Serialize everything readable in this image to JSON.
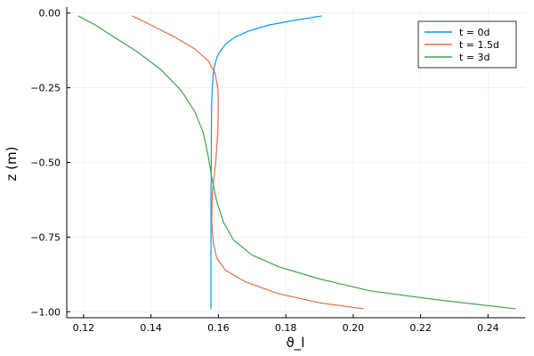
{
  "chart_data": {
    "type": "line",
    "xlabel": "ϑ_l",
    "ylabel": "z (m)",
    "xlim": [
      0.115,
      0.251
    ],
    "ylim": [
      -1.02,
      0.02
    ],
    "xticks": [
      0.12,
      0.14,
      0.16,
      0.18,
      0.2,
      0.22,
      0.24
    ],
    "xtick_labels": [
      "0.12",
      "0.14",
      "0.16",
      "0.18",
      "0.20",
      "0.22",
      "0.24"
    ],
    "yticks": [
      0.0,
      -0.25,
      -0.5,
      -0.75,
      -1.0
    ],
    "ytick_labels": [
      "0.00",
      "−0.25",
      "−0.50",
      "−0.75",
      "−1.00"
    ],
    "grid": true,
    "legend_position": "top-right",
    "series": [
      {
        "name": "t = 0d",
        "color": "#009AFA",
        "x": [
          0.1578,
          0.1578,
          0.1578,
          0.1578,
          0.1578,
          0.1579,
          0.1579,
          0.158,
          0.1582,
          0.1585,
          0.159,
          0.1598,
          0.161,
          0.1625,
          0.165,
          0.169,
          0.175,
          0.182,
          0.1905
        ],
        "y": [
          -0.99,
          -0.9,
          -0.8,
          -0.7,
          -0.6,
          -0.5,
          -0.4,
          -0.3,
          -0.25,
          -0.2,
          -0.17,
          -0.14,
          -0.12,
          -0.1,
          -0.08,
          -0.06,
          -0.04,
          -0.025,
          -0.01
        ]
      },
      {
        "name": "t = 1.5d",
        "color": "#E36F47",
        "x": [
          0.203,
          0.19,
          0.178,
          0.168,
          0.162,
          0.1595,
          0.1585,
          0.158,
          0.1582,
          0.1592,
          0.1598,
          0.16,
          0.1598,
          0.159,
          0.157,
          0.153,
          0.147,
          0.14,
          0.1345
        ],
        "y": [
          -0.99,
          -0.97,
          -0.94,
          -0.9,
          -0.86,
          -0.82,
          -0.77,
          -0.7,
          -0.6,
          -0.5,
          -0.4,
          -0.3,
          -0.25,
          -0.2,
          -0.16,
          -0.12,
          -0.08,
          -0.04,
          -0.01
        ]
      },
      {
        "name": "t = 3d",
        "color": "#3EA44E",
        "x": [
          0.248,
          0.225,
          0.205,
          0.19,
          0.178,
          0.17,
          0.1645,
          0.1615,
          0.1595,
          0.158,
          0.157,
          0.1555,
          0.153,
          0.149,
          0.143,
          0.136,
          0.129,
          0.1235,
          0.1185
        ],
        "y": [
          -0.99,
          -0.96,
          -0.93,
          -0.89,
          -0.85,
          -0.81,
          -0.76,
          -0.7,
          -0.63,
          -0.55,
          -0.48,
          -0.4,
          -0.33,
          -0.26,
          -0.19,
          -0.13,
          -0.08,
          -0.04,
          -0.01
        ]
      }
    ]
  }
}
